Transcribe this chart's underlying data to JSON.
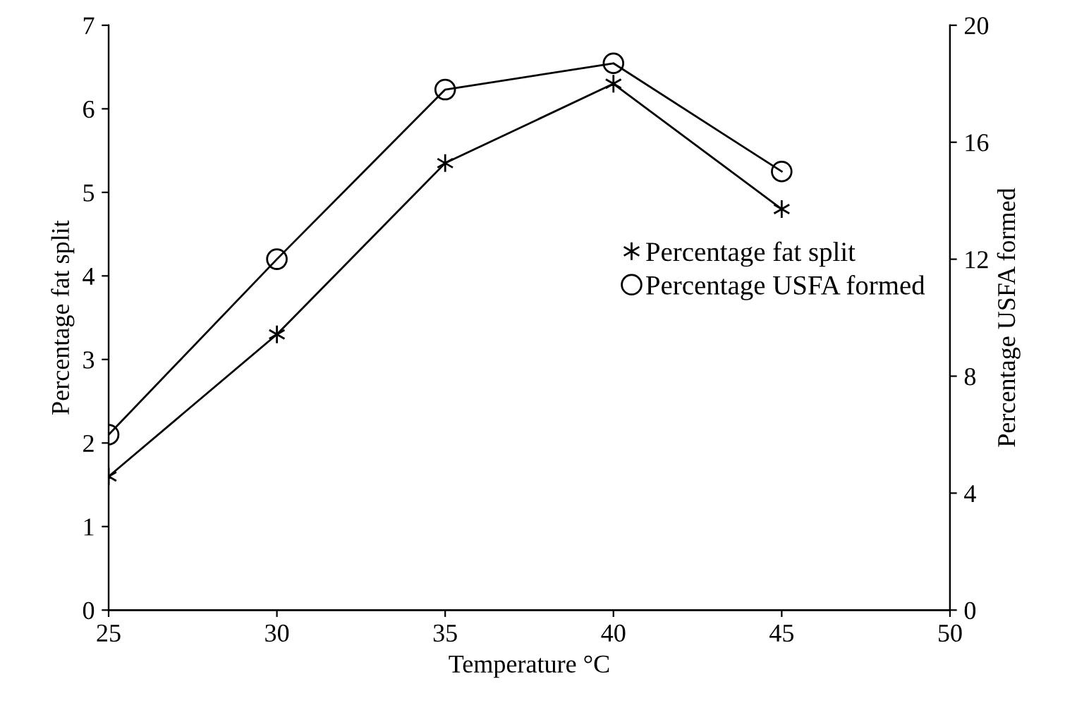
{
  "chart_data": {
    "type": "line",
    "xlabel": "Temperature °C",
    "ylabel": "Percentage fat split",
    "y2label": "Percentage USFA formed",
    "x": [
      25,
      30,
      35,
      40,
      45
    ],
    "series": [
      {
        "name": "Percentage fat split",
        "color": "#000000",
        "marker": "cross",
        "values": [
          1.6,
          3.3,
          5.35,
          6.3,
          4.8
        ]
      },
      {
        "name": "Percentage USFA formed",
        "color": "#000000",
        "marker": "circle",
        "axis": "y2",
        "values": [
          6.0,
          12.0,
          17.8,
          18.7,
          15.0
        ]
      }
    ],
    "xlim": [
      25,
      50
    ],
    "xticks": [
      25,
      30,
      35,
      40,
      45,
      50
    ],
    "ylim": [
      0,
      7
    ],
    "yticks": [
      0,
      1,
      2,
      3,
      4,
      5,
      6,
      7
    ],
    "y2lim": [
      0,
      20
    ],
    "y2ticks": [
      0,
      4,
      8,
      12,
      16,
      20
    ],
    "grid": false,
    "legend": "center right"
  }
}
